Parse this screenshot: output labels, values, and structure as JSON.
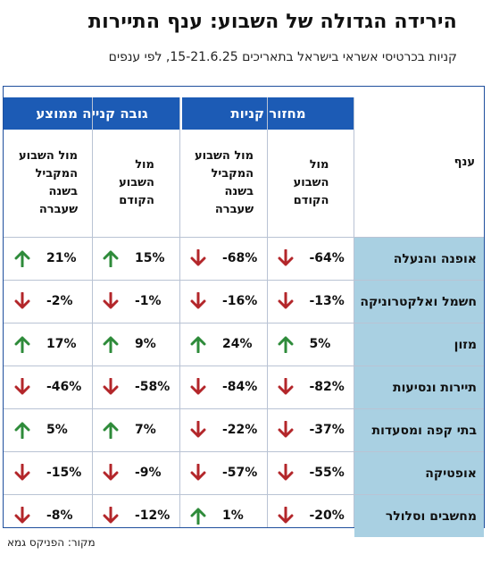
{
  "title": "הירידה הגדולה של השבוע: ענף התיירות",
  "subtitle": "קניות בכרטיסי אשראי בישראל בתאריכים 15-21.6.25, לפי ענפים",
  "source": "מקור: הפניקס גמא",
  "chart_data": {
    "type": "table",
    "header": {
      "category": "ענף",
      "groups": [
        "מחזור קניות",
        "גובה קנייה ממוצע"
      ],
      "subcolumns": [
        "מול השבוע הקודם",
        "מול השבוע המקביל בשנה שעברה"
      ],
      "subcolumn_lines": [
        [
          "מול",
          "השבוע",
          "הקודם"
        ],
        [
          "מול השבוע",
          "המקביל",
          "בשנה",
          "שעברה"
        ]
      ]
    },
    "unit": "%",
    "columns": [
      "מחזור קניות - מול השבוע הקודם",
      "מחזור קניות - מול השבוע המקביל בשנה שעברה",
      "גובה קנייה ממוצע - מול השבוע הקודם",
      "גובה קנייה ממוצע - מול השבוע המקביל בשנה שעברה"
    ],
    "rows": [
      {
        "category": "אופנה והנעלה",
        "values": [
          -64,
          -68,
          15,
          21
        ],
        "labels": [
          "-64%",
          "-68%",
          "15%",
          "21%"
        ]
      },
      {
        "category": "חשמל ואלקטרוניקה",
        "values": [
          -13,
          -16,
          -1,
          -2
        ],
        "labels": [
          "-13%",
          "-16%",
          "-1%",
          "-2%"
        ]
      },
      {
        "category": "מזון",
        "values": [
          5,
          24,
          9,
          17
        ],
        "labels": [
          "5%",
          "24%",
          "9%",
          "17%"
        ]
      },
      {
        "category": "תיירות ונסיעות",
        "values": [
          -82,
          -84,
          -58,
          -46
        ],
        "labels": [
          "-82%",
          "-84%",
          "-58%",
          "-46%"
        ]
      },
      {
        "category": "בתי קפה ומסעדות",
        "values": [
          -37,
          -22,
          7,
          5
        ],
        "labels": [
          "-37%",
          "-22%",
          "7%",
          "5%"
        ]
      },
      {
        "category": "אופטיקה",
        "values": [
          -55,
          -57,
          -9,
          -15
        ],
        "labels": [
          "-55%",
          "-57%",
          "-9%",
          "-15%"
        ]
      },
      {
        "category": "מחשבים וסלולר",
        "values": [
          -20,
          1,
          -12,
          -8
        ],
        "labels": [
          "-20%",
          "1%",
          "-12%",
          "-8%"
        ]
      }
    ],
    "colors": {
      "up": "#2e8b3a",
      "down": "#b3262a",
      "header_bg": "#1c5bb5",
      "category_bg": "#a9d0e2",
      "border": "#1f4f9d"
    }
  }
}
